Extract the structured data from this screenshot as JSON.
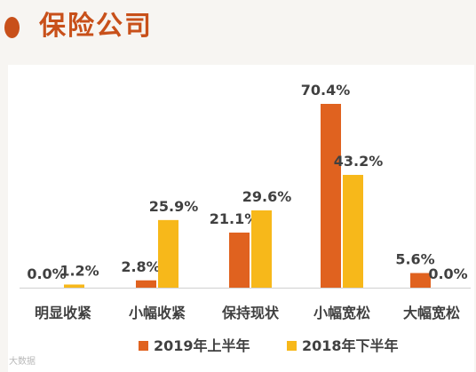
{
  "header": {
    "title": "保险公司"
  },
  "watermark": "大数据",
  "colors": {
    "accent": "#c8501a",
    "series_2019": "#e0621f",
    "series_2018": "#f7b81a"
  },
  "chart_data": {
    "type": "bar",
    "categories": [
      "明显收紧",
      "小幅收紧",
      "保持现状",
      "小幅宽松",
      "大幅宽松"
    ],
    "series": [
      {
        "name": "2019年上半年",
        "values": [
          0.0,
          2.8,
          21.1,
          70.4,
          5.6
        ],
        "labels": [
          "0.0%",
          "2.8%",
          "21.1%",
          "70.4%",
          "5.6%"
        ]
      },
      {
        "name": "2018年下半年",
        "values": [
          1.2,
          25.9,
          29.6,
          43.2,
          0.0
        ],
        "labels": [
          "1.2%",
          "25.9%",
          "29.6%",
          "43.2%",
          "0.0%"
        ]
      }
    ],
    "ylim": [
      0,
      70.4
    ],
    "grid": false,
    "legend": "bottom"
  }
}
